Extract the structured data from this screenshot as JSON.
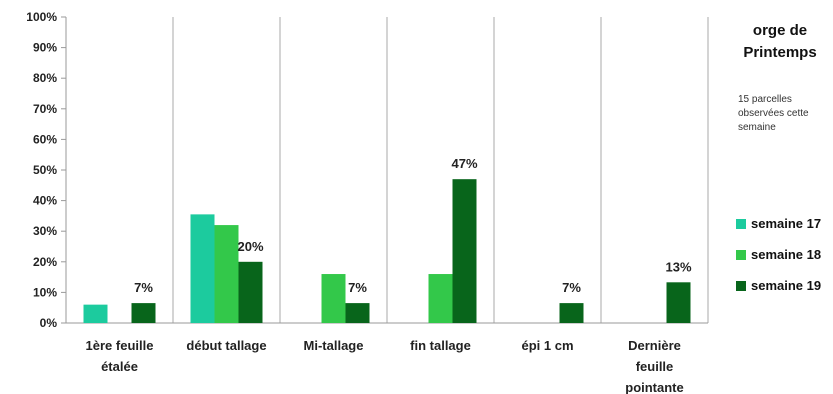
{
  "chart_data": {
    "type": "bar",
    "title": "orge de Printemps",
    "subtitle": "15 parcelles observées cette semaine",
    "categories": [
      "1ère feuille étalée",
      "début tallage",
      "Mi-tallage",
      "fin tallage",
      "épi 1 cm",
      "Dernière feuille pointante"
    ],
    "series": [
      {
        "name": "semaine 17",
        "color": "#1ccb9e",
        "values": [
          6,
          35.5,
          0,
          0,
          0,
          0
        ]
      },
      {
        "name": "semaine 18",
        "color": "#33c84a",
        "values": [
          0,
          32,
          16,
          16,
          0,
          0
        ]
      },
      {
        "name": "semaine 19",
        "color": "#08651b",
        "values": [
          6.5,
          20,
          6.5,
          47,
          6.5,
          13.3
        ]
      }
    ],
    "data_labels": [
      {
        "series": 2,
        "category": 0,
        "text": "7%"
      },
      {
        "series": 2,
        "category": 1,
        "text": "20%"
      },
      {
        "series": 2,
        "category": 2,
        "text": "7%"
      },
      {
        "series": 2,
        "category": 3,
        "text": "47%"
      },
      {
        "series": 2,
        "category": 4,
        "text": "7%"
      },
      {
        "series": 2,
        "category": 5,
        "text": "13%"
      }
    ],
    "yticks": [
      "0%",
      "10%",
      "20%",
      "30%",
      "40%",
      "50%",
      "60%",
      "70%",
      "80%",
      "90%",
      "100%"
    ],
    "ylim": [
      0,
      100
    ],
    "grid": "vertical separators between categories",
    "legend": "right"
  }
}
